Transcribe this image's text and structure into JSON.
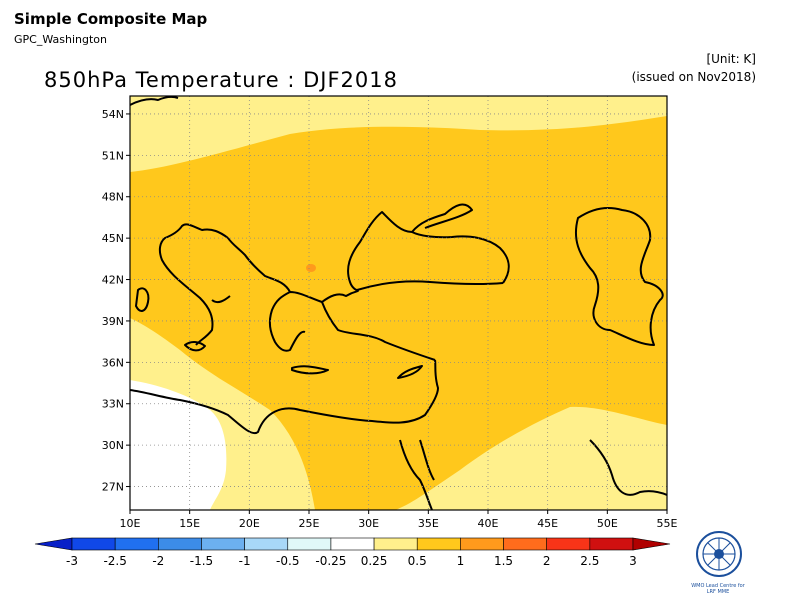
{
  "header": {
    "title": "Simple Composite Map",
    "source": "GPC_Washington",
    "map_title": "850hPa Temperature : DJF2018",
    "unit": "[Unit: K]",
    "issued": "(issued on Nov2018)"
  },
  "map": {
    "lat_ticks": [
      "54N",
      "51N",
      "48N",
      "45N",
      "42N",
      "39N",
      "36N",
      "33N",
      "30N",
      "27N"
    ],
    "lon_ticks": [
      "10E",
      "15E",
      "20E",
      "25E",
      "30E",
      "35E",
      "40E",
      "45E",
      "50E",
      "55E"
    ],
    "extent": {
      "lon": [
        10,
        55
      ],
      "lat": [
        25.3,
        55.3
      ]
    }
  },
  "colorbar": {
    "labels": [
      "-3",
      "-2.5",
      "-2",
      "-1.5",
      "-1",
      "-0.5",
      "-0.25",
      "0.25",
      "0.5",
      "1",
      "1.5",
      "2",
      "2.5",
      "3"
    ],
    "colors": [
      "#0820c8",
      "#1048e8",
      "#2070f0",
      "#3c8ce8",
      "#6cb0f0",
      "#a8d8f8",
      "#e0f8f8",
      "#ffffff",
      "#fff08c",
      "#ffc81c",
      "#ff9a1c",
      "#ff6c1c",
      "#f83418",
      "#d01010",
      "#b00000"
    ]
  },
  "logo": {
    "icon": "wmo-globe-icon",
    "text": "WMO Lead Centre for LRF MME"
  }
}
